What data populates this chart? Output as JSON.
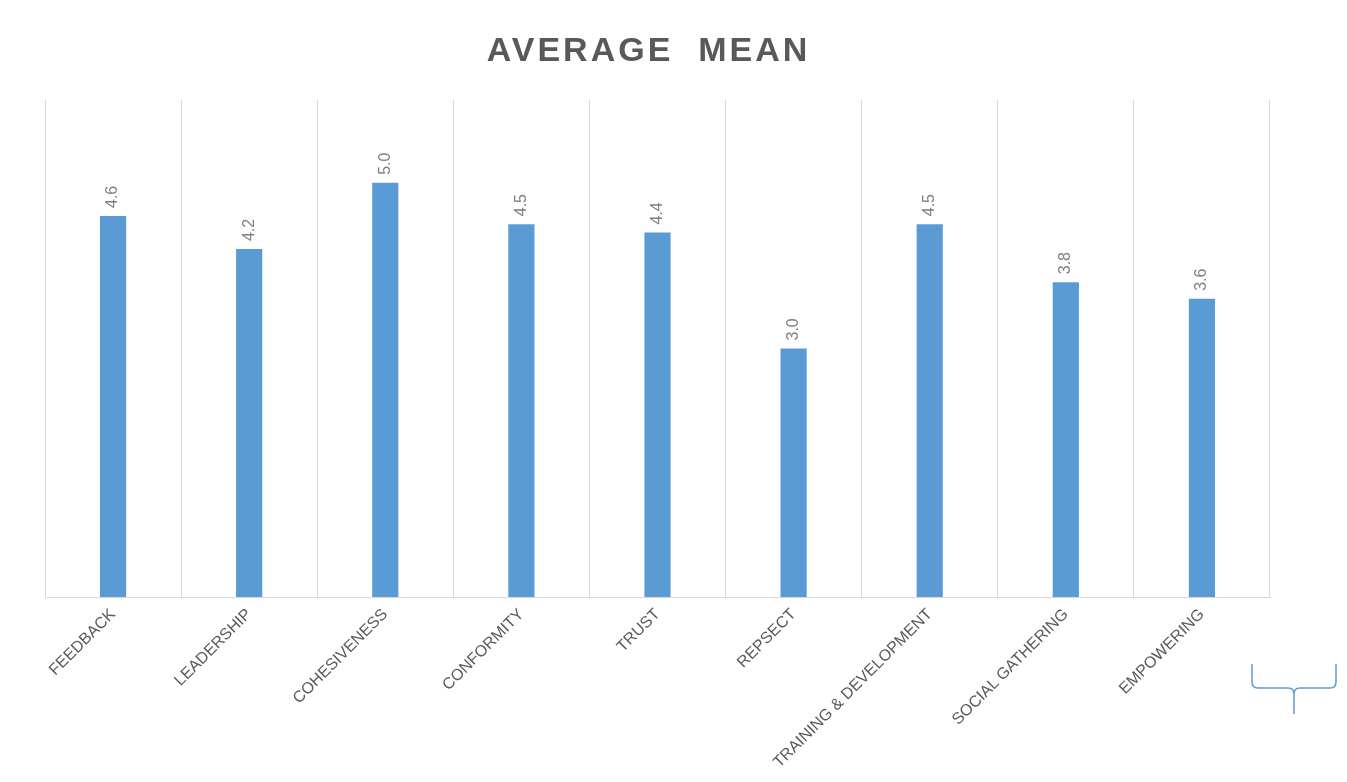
{
  "chart_data": {
    "type": "bar",
    "title": "AVERAGE  MEAN",
    "categories": [
      "FEEDBACK",
      "LEADERSHIP",
      "COHESIVENESS",
      "CONFORMITY",
      "TRUST",
      "REPSECT",
      "TRAINING & DEVELOPMENT",
      "SOCIAL GATHERING",
      "EMPOWERING"
    ],
    "values": [
      4.6,
      4.2,
      5.0,
      4.5,
      4.4,
      3.0,
      4.5,
      3.8,
      3.6
    ],
    "value_labels": [
      "4.6",
      "4.2",
      "5.0",
      "4.5",
      "4.4",
      "3.0",
      "4.5",
      "3.8",
      "3.6"
    ],
    "color": "#5b9bd5",
    "grid": "x",
    "legend": false
  }
}
